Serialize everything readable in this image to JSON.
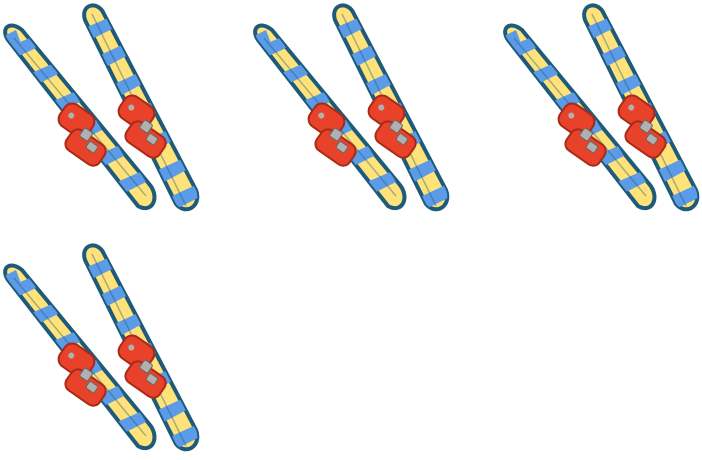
{
  "items": [
    {
      "icon": "ski-pair-icon"
    },
    {
      "icon": "ski-pair-icon"
    },
    {
      "icon": "ski-pair-icon"
    },
    {
      "icon": "ski-pair-icon"
    }
  ],
  "colors": {
    "ski_base": "#ffe27a",
    "ski_stripe": "#5b9be8",
    "ski_outline": "#1e5a7a",
    "boot": "#e8432a",
    "boot_dark": "#a82a18",
    "buckle": "#b0b0b0"
  }
}
